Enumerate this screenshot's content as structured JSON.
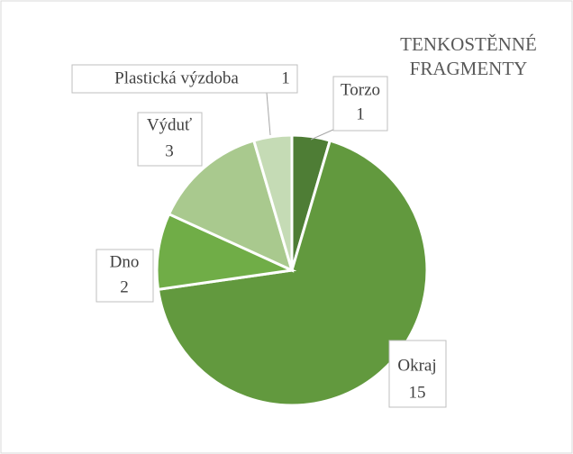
{
  "chart_data": {
    "type": "pie",
    "title": "TENKOSTĚNNÉ FRAGMENTY",
    "categories": [
      "Torzo",
      "Okraj",
      "Dno",
      "Výduť",
      "Plastická výzdoba"
    ],
    "values": [
      1,
      15,
      2,
      3,
      1
    ],
    "colors": [
      "#4e7d35",
      "#62993e",
      "#70ad47",
      "#a9c98e",
      "#c5dbb5"
    ]
  }
}
